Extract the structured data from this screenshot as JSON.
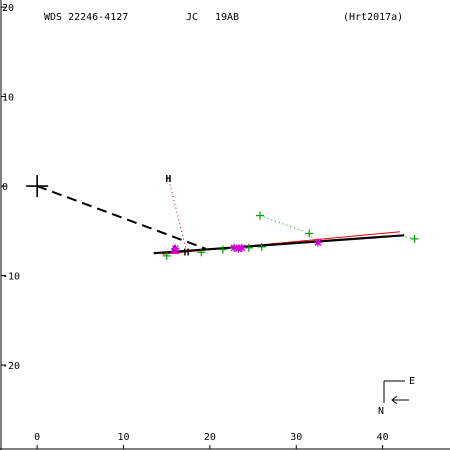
{
  "chart_data": {
    "type": "scatter",
    "header": {
      "system": "WDS 22246-4127",
      "discoverer": "JC",
      "pair": "19AB",
      "reference": "(Hrt2017a)"
    },
    "x_ticks": [
      0,
      10,
      20,
      30,
      40
    ],
    "y_ticks": [
      20,
      10,
      0,
      -10,
      -20
    ],
    "xlim": [
      -4.3,
      47.8
    ],
    "ylim": [
      -29.5,
      20.8
    ],
    "y_inverted": true,
    "compass": {
      "east_label": "E",
      "north_label": "N"
    },
    "primary_marker": {
      "x": 0,
      "y": 0
    },
    "orbit_black": [
      [
        13.5,
        -7.5
      ],
      [
        42.5,
        -5.5
      ]
    ],
    "orbit_red": [
      [
        14.5,
        -7.6
      ],
      [
        42.0,
        -5.1
      ]
    ],
    "reference_line": [
      [
        0,
        0
      ],
      [
        19.5,
        -7.0
      ]
    ],
    "speckle_points": [
      {
        "x": 16.0,
        "y": -7.0
      },
      {
        "x": 22.8,
        "y": -6.9
      },
      {
        "x": 23.3,
        "y": -7.0
      },
      {
        "x": 23.7,
        "y": -6.9
      },
      {
        "x": 32.5,
        "y": -6.3
      }
    ],
    "highlight_points": [
      {
        "x": 15.9,
        "y": -7.2,
        "label": "",
        "lx": 15.9,
        "ly": -7.2
      },
      {
        "x": 17.3,
        "y": -7.3,
        "label": "H",
        "lx": 15.2,
        "ly": 0.9
      }
    ],
    "visual_points": [
      {
        "x": 15.0,
        "y": -7.8,
        "rx": 15.2,
        "ry": -7.6
      },
      {
        "x": 19.0,
        "y": -7.4,
        "rx": 19.2,
        "ry": -7.2
      },
      {
        "x": 21.5,
        "y": -7.1,
        "rx": 21.7,
        "ry": -6.9
      },
      {
        "x": 24.5,
        "y": -6.9,
        "rx": 24.7,
        "ry": -6.7
      },
      {
        "x": 26.0,
        "y": -6.8,
        "rx": 26.2,
        "ry": -6.6
      },
      {
        "x": 25.8,
        "y": -3.3,
        "rx": 31.0,
        "ry": -5.1
      },
      {
        "x": 31.5,
        "y": -5.3,
        "rx": 32.0,
        "ry": -6.0
      },
      {
        "x": 43.7,
        "y": -5.9,
        "rx": 42.3,
        "ry": -5.6
      }
    ],
    "colors": {
      "axis": "#000000",
      "orbit_black": "#000000",
      "orbit_red": "#ff0000",
      "visual": "#00a000",
      "speckle": "#cc00cc",
      "highlight": "#e00000"
    }
  }
}
